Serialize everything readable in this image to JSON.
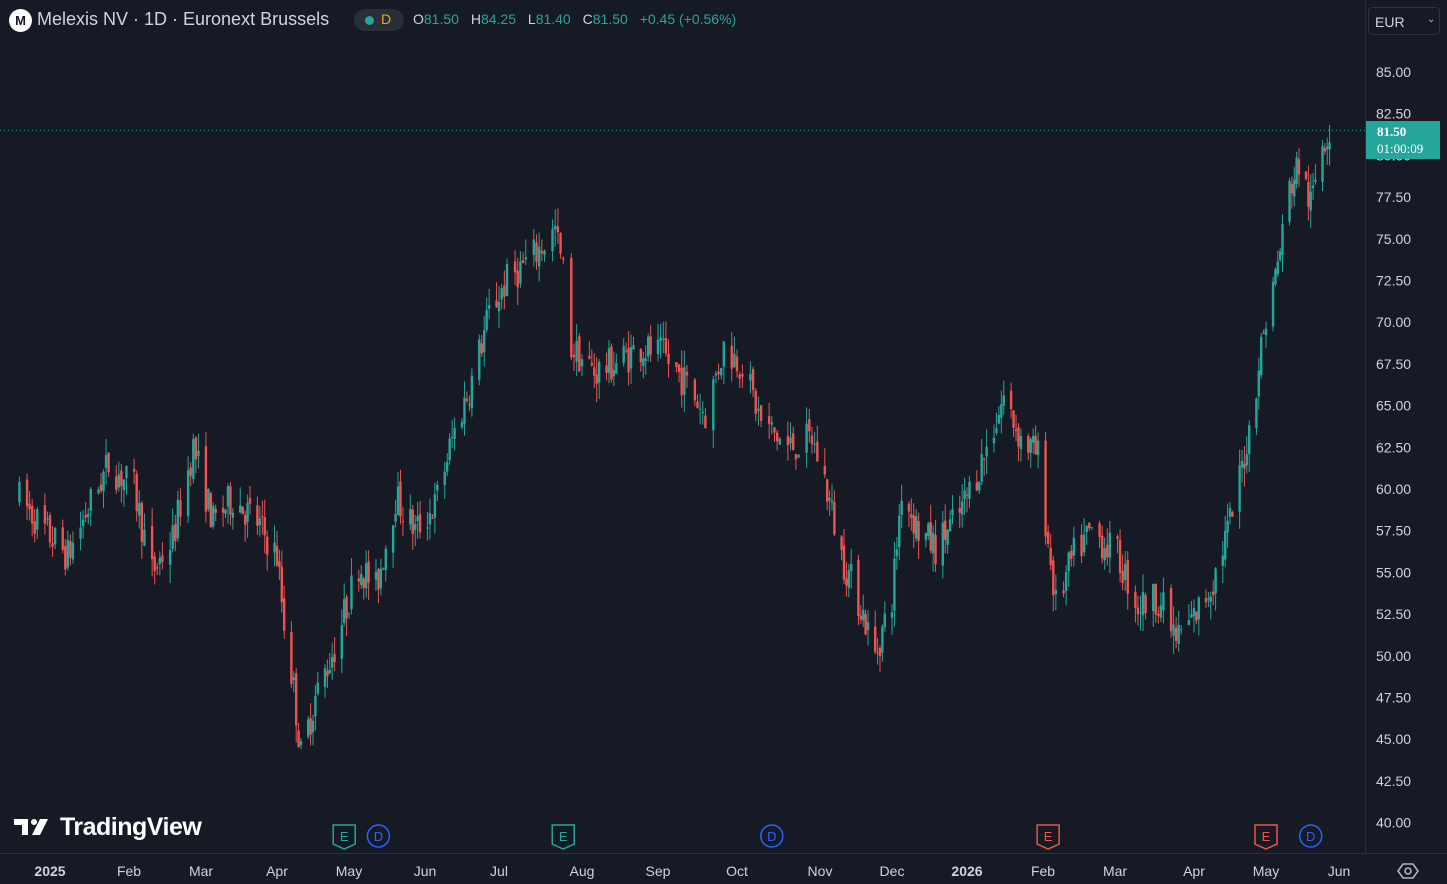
{
  "header": {
    "symbol_icon": "M",
    "title": "Melexis NV · 1D · Euronext Brussels",
    "interval_badge": "D",
    "ohlc": [
      {
        "k": "O",
        "v": "81.50"
      },
      {
        "k": "H",
        "v": "84.25"
      },
      {
        "k": "L",
        "v": "81.40"
      },
      {
        "k": "C",
        "v": "81.50"
      },
      {
        "k": "",
        "v": "+0.45 (+0.56%)"
      }
    ],
    "currency": "EUR"
  },
  "price_tag": {
    "price": "81.50",
    "countdown": "01:00:09"
  },
  "logo": {
    "text": "TradingView"
  },
  "colors": {
    "up": "#26a69a",
    "down": "#ef5350",
    "background": "#161a25",
    "grid_line": "#2a2e39",
    "earnings": "#26a69a",
    "earnings_upcoming": "#ef5350",
    "dividend": "#2962ff"
  },
  "chart_data": {
    "type": "candlestick",
    "title": "Melexis NV · 1D · Euronext Brussels",
    "ylim": [
      39,
      87.5
    ],
    "y_ticks": [
      "85.00",
      "82.50",
      "80.00",
      "77.50",
      "75.00",
      "72.50",
      "70.00",
      "67.50",
      "65.00",
      "62.50",
      "60.00",
      "57.50",
      "55.00",
      "52.50",
      "50.00",
      "47.50",
      "45.00",
      "42.50",
      "40.00"
    ],
    "x_ticks": [
      {
        "label": "2025",
        "at": "2025-01-01",
        "year": true
      },
      {
        "label": "Feb",
        "at": "2025-02-01"
      },
      {
        "label": "Mar",
        "at": "2025-03-01"
      },
      {
        "label": "Apr",
        "at": "2025-04-01"
      },
      {
        "label": "May",
        "at": "2025-05-01"
      },
      {
        "label": "Jun",
        "at": "2025-06-01"
      },
      {
        "label": "Jul",
        "at": "2025-07-01"
      },
      {
        "label": "Aug",
        "at": "2025-08-01"
      },
      {
        "label": "Sep",
        "at": "2025-09-01"
      },
      {
        "label": "Oct",
        "at": "2025-10-01"
      },
      {
        "label": "Nov",
        "at": "2025-11-01"
      },
      {
        "label": "Dec",
        "at": "2025-12-01"
      },
      {
        "label": "2026",
        "at": "2026-01-01",
        "year": true
      },
      {
        "label": "Feb",
        "at": "2026-02-01"
      },
      {
        "label": "Mar",
        "at": "2026-03-01"
      },
      {
        "label": "Apr",
        "at": "2026-04-01"
      },
      {
        "label": "May",
        "at": "2026-05-01"
      },
      {
        "label": "Jun",
        "at": "2026-06-01"
      }
    ],
    "last_price": 81.5,
    "closes": [
      {
        "date": "2024-12-20",
        "close": 59.5
      },
      {
        "date": "2024-12-30",
        "close": 57.5
      },
      {
        "date": "2025-01-08",
        "close": 56.0
      },
      {
        "date": "2025-01-15",
        "close": 58.5
      },
      {
        "date": "2025-01-24",
        "close": 61.5
      },
      {
        "date": "2025-02-03",
        "close": 60.0
      },
      {
        "date": "2025-02-10",
        "close": 55.0
      },
      {
        "date": "2025-02-18",
        "close": 57.0
      },
      {
        "date": "2025-02-26",
        "close": 62.5
      },
      {
        "date": "2025-03-06",
        "close": 58.0
      },
      {
        "date": "2025-03-14",
        "close": 59.5
      },
      {
        "date": "2025-03-24",
        "close": 58.0
      },
      {
        "date": "2025-04-01",
        "close": 56.0
      },
      {
        "date": "2025-04-04",
        "close": 52.0
      },
      {
        "date": "2025-04-08",
        "close": 48.0
      },
      {
        "date": "2025-04-11",
        "close": 44.0
      },
      {
        "date": "2025-04-17",
        "close": 47.5
      },
      {
        "date": "2025-04-25",
        "close": 50.5
      },
      {
        "date": "2025-05-05",
        "close": 55.5
      },
      {
        "date": "2025-05-12",
        "close": 54.0
      },
      {
        "date": "2025-05-20",
        "close": 59.5
      },
      {
        "date": "2025-05-28",
        "close": 57.5
      },
      {
        "date": "2025-06-05",
        "close": 59.0
      },
      {
        "date": "2025-06-12",
        "close": 63.0
      },
      {
        "date": "2025-06-20",
        "close": 66.5
      },
      {
        "date": "2025-06-27",
        "close": 70.5
      },
      {
        "date": "2025-07-04",
        "close": 72.5
      },
      {
        "date": "2025-07-14",
        "close": 74.0
      },
      {
        "date": "2025-07-22",
        "close": 75.5
      },
      {
        "date": "2025-07-25",
        "close": 73.0
      },
      {
        "date": "2025-07-28",
        "close": 68.5
      },
      {
        "date": "2025-08-06",
        "close": 67.0
      },
      {
        "date": "2025-08-14",
        "close": 67.5
      },
      {
        "date": "2025-08-25",
        "close": 68.5
      },
      {
        "date": "2025-09-03",
        "close": 68.0
      },
      {
        "date": "2025-09-11",
        "close": 66.5
      },
      {
        "date": "2025-09-19",
        "close": 64.5
      },
      {
        "date": "2025-09-26",
        "close": 68.5
      },
      {
        "date": "2025-10-03",
        "close": 67.5
      },
      {
        "date": "2025-10-10",
        "close": 64.0
      },
      {
        "date": "2025-10-20",
        "close": 62.5
      },
      {
        "date": "2025-10-29",
        "close": 63.0
      },
      {
        "date": "2025-11-03",
        "close": 60.5
      },
      {
        "date": "2025-11-10",
        "close": 56.0
      },
      {
        "date": "2025-11-18",
        "close": 53.0
      },
      {
        "date": "2025-11-24",
        "close": 50.0
      },
      {
        "date": "2025-12-01",
        "close": 53.5
      },
      {
        "date": "2025-12-05",
        "close": 60.0
      },
      {
        "date": "2025-12-12",
        "close": 57.5
      },
      {
        "date": "2025-12-19",
        "close": 56.5
      },
      {
        "date": "2025-12-29",
        "close": 58.5
      },
      {
        "date": "2026-01-08",
        "close": 62.0
      },
      {
        "date": "2026-01-16",
        "close": 65.5
      },
      {
        "date": "2026-01-23",
        "close": 63.0
      },
      {
        "date": "2026-01-30",
        "close": 62.0
      },
      {
        "date": "2026-02-06",
        "close": 53.0
      },
      {
        "date": "2026-02-13",
        "close": 56.0
      },
      {
        "date": "2026-02-20",
        "close": 57.5
      },
      {
        "date": "2026-03-02",
        "close": 56.0
      },
      {
        "date": "2026-03-10",
        "close": 53.0
      },
      {
        "date": "2026-03-18",
        "close": 53.5
      },
      {
        "date": "2026-03-25",
        "close": 51.0
      },
      {
        "date": "2026-04-02",
        "close": 52.5
      },
      {
        "date": "2026-04-09",
        "close": 54.5
      },
      {
        "date": "2026-04-17",
        "close": 58.5
      },
      {
        "date": "2026-04-24",
        "close": 63.5
      },
      {
        "date": "2026-04-30",
        "close": 69.5
      },
      {
        "date": "2026-05-06",
        "close": 73.5
      },
      {
        "date": "2026-05-11",
        "close": 78.0
      },
      {
        "date": "2026-05-15",
        "close": 79.5
      },
      {
        "date": "2026-05-20",
        "close": 77.0
      },
      {
        "date": "2026-05-25",
        "close": 81.0
      },
      {
        "date": "2026-05-28",
        "close": 81.5
      }
    ],
    "extremes": {
      "high": 84.25,
      "low": 42.5
    },
    "events": [
      {
        "type": "E",
        "date": "2025-04-29",
        "kind": "earnings"
      },
      {
        "type": "D",
        "date": "2025-05-13",
        "kind": "dividend"
      },
      {
        "type": "E",
        "date": "2025-07-25",
        "kind": "earnings"
      },
      {
        "type": "D",
        "date": "2025-10-14",
        "kind": "dividend"
      },
      {
        "type": "E",
        "date": "2026-02-03",
        "kind": "earnings_upcoming"
      },
      {
        "type": "E",
        "date": "2026-05-01",
        "kind": "earnings_upcoming"
      },
      {
        "type": "D",
        "date": "2026-05-20",
        "kind": "dividend"
      }
    ]
  }
}
